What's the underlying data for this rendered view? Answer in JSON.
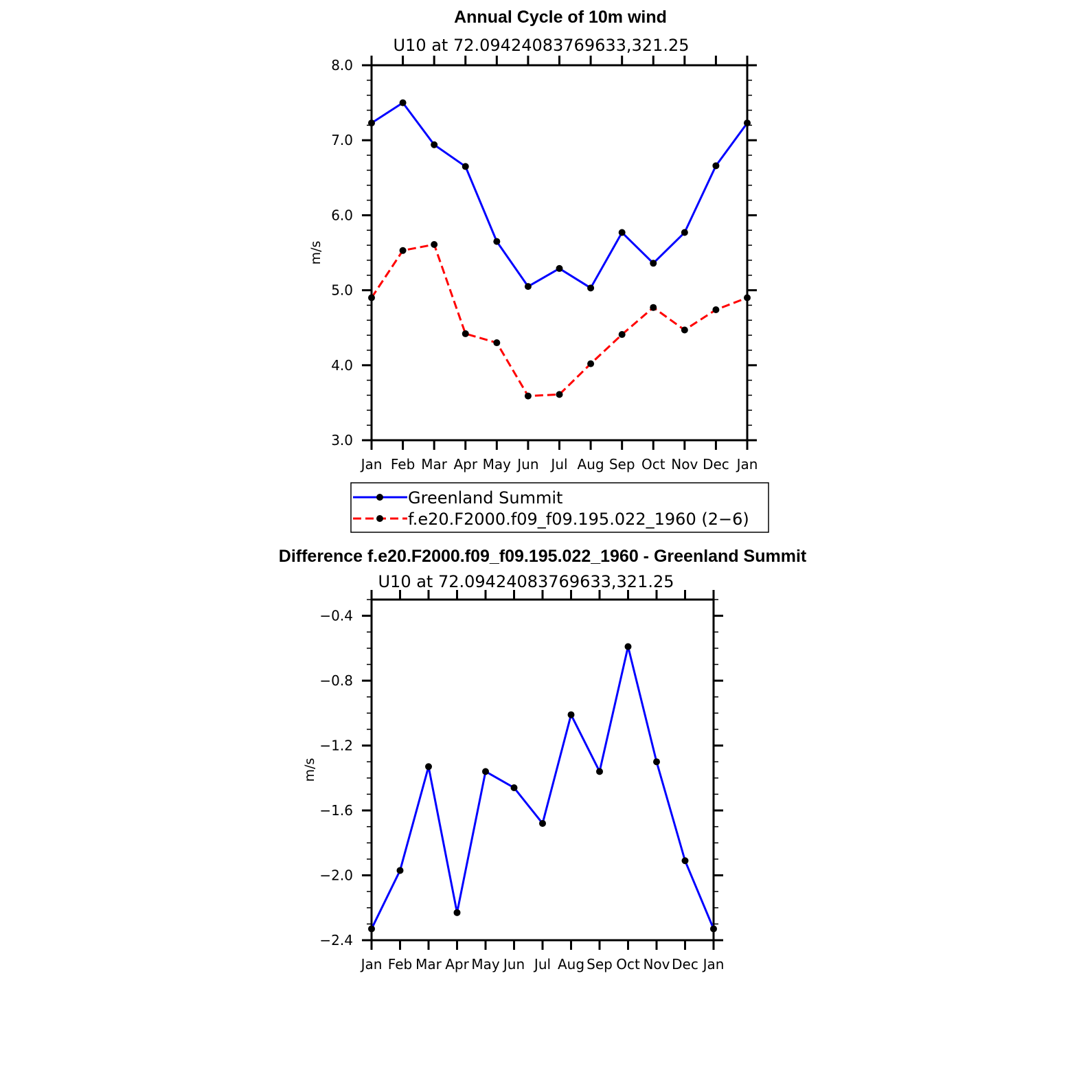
{
  "chart_data": [
    {
      "type": "line",
      "title": "Annual Cycle of 10m wind",
      "subtitle": "U10 at 72.09424083769633,321.25",
      "xlabel": "",
      "ylabel": "m/s",
      "categories": [
        "Jan",
        "Feb",
        "Mar",
        "Apr",
        "May",
        "Jun",
        "Jul",
        "Aug",
        "Sep",
        "Oct",
        "Nov",
        "Dec",
        "Jan"
      ],
      "ylim": [
        3.0,
        8.0
      ],
      "yticks": [
        "3.0",
        "4.0",
        "5.0",
        "6.0",
        "7.0",
        "8.0"
      ],
      "grid": false,
      "legend_position": "below",
      "series": [
        {
          "name": "Greenland Summit",
          "color": "#0000ff",
          "style": "solid",
          "values": [
            7.23,
            7.5,
            6.94,
            6.65,
            5.65,
            5.05,
            5.29,
            5.03,
            5.77,
            5.36,
            5.77,
            6.66,
            7.23
          ]
        },
        {
          "name": "f.e20.F2000.f09_f09.195.022_1960 (2−6)",
          "color": "#ff0000",
          "style": "dashed",
          "values": [
            4.9,
            5.53,
            5.61,
            4.42,
            4.3,
            3.59,
            3.61,
            4.02,
            4.41,
            4.77,
            4.47,
            4.74,
            4.9
          ]
        }
      ]
    },
    {
      "type": "line",
      "title": "Difference f.e20.F2000.f09_f09.195.022_1960 - Greenland Summit",
      "subtitle": "U10 at 72.09424083769633,321.25",
      "xlabel": "",
      "ylabel": "m/s",
      "categories": [
        "Jan",
        "Feb",
        "Mar",
        "Apr",
        "May",
        "Jun",
        "Jul",
        "Aug",
        "Sep",
        "Oct",
        "Nov",
        "Dec",
        "Jan"
      ],
      "ylim": [
        -2.4,
        -0.3
      ],
      "yticks": [
        "−0.4",
        "−0.8",
        "−1.2",
        "−1.6",
        "−2.0",
        "−2.4"
      ],
      "grid": false,
      "series": [
        {
          "color": "#0000ff",
          "style": "solid",
          "values": [
            -2.33,
            -1.97,
            -1.33,
            -2.23,
            -1.36,
            -1.46,
            -1.68,
            -1.01,
            -1.36,
            -0.59,
            -1.3,
            -1.91,
            -2.33
          ]
        }
      ]
    }
  ]
}
